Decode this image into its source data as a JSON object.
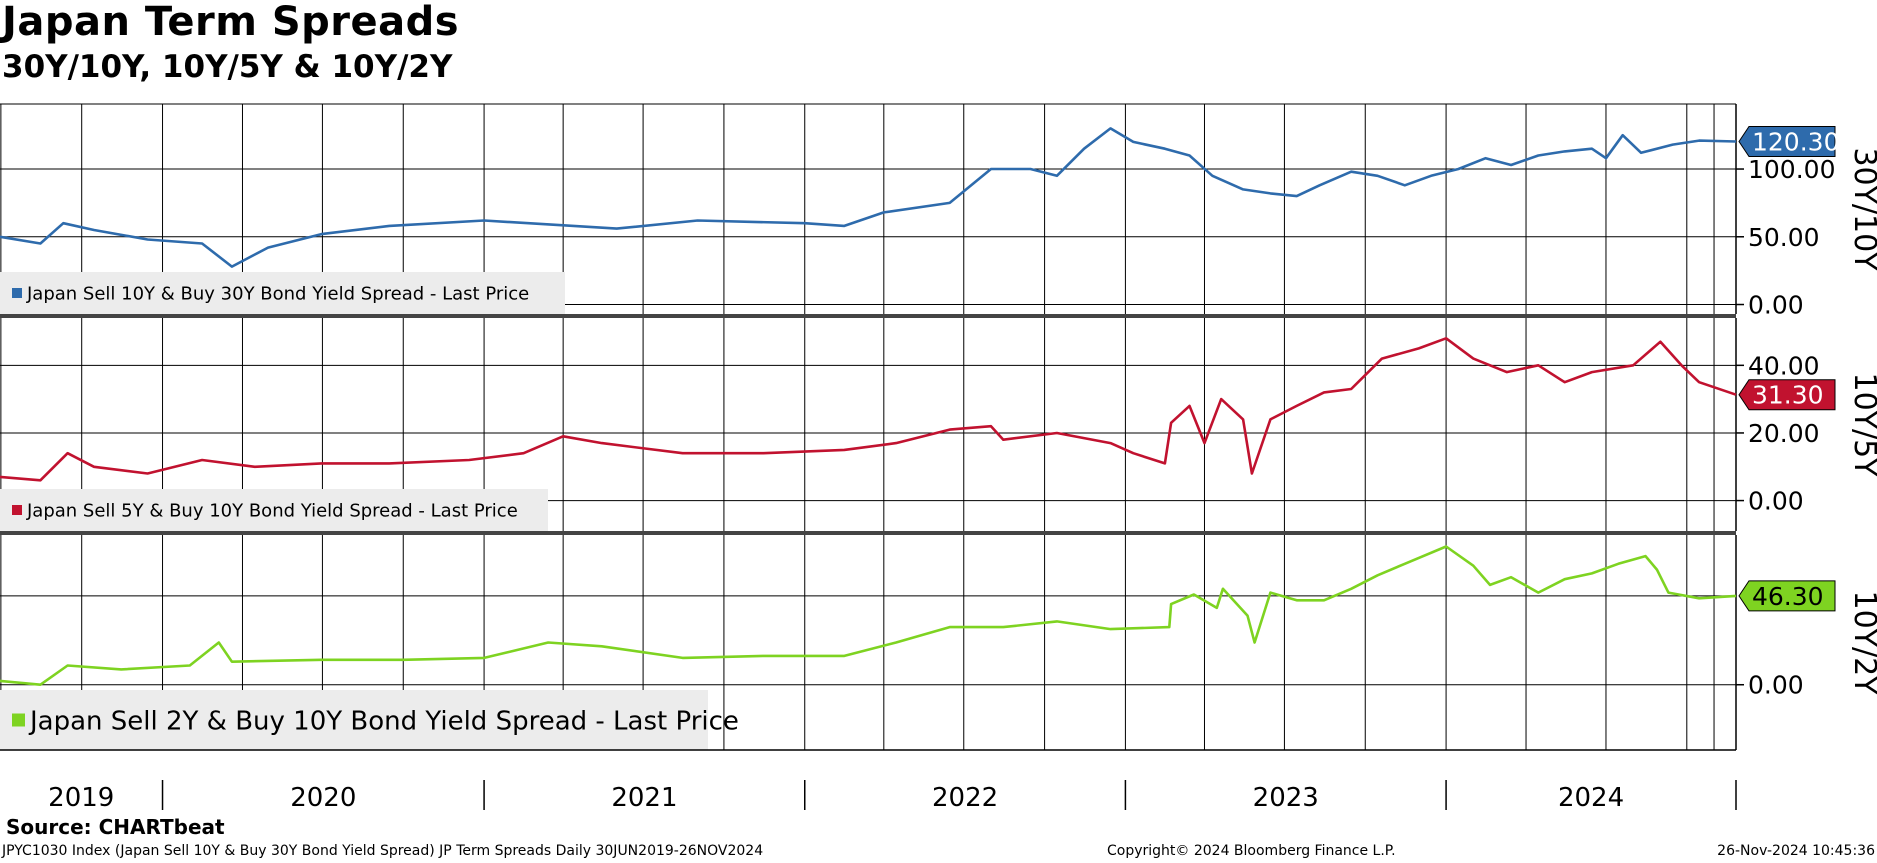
{
  "header": {
    "title": "Japan Term Spreads",
    "subtitle": "30Y/10Y, 10Y/5Y & 10Y/2Y"
  },
  "footer": {
    "source": "Source: CHARTbeat",
    "description": "JPYC1030 Index (Japan Sell 10Y & Buy 30Y Bond Yield Spread) JP Term Spreads  Daily 30JUN2019-26NOV2024",
    "copyright": "Copyright© 2024 Bloomberg Finance L.P.",
    "timestamp": "26-Nov-2024 10:45:36"
  },
  "colors": {
    "series_30y10y": "#2e6bac",
    "series_10y5y": "#c1122f",
    "series_10y2y": "#7ed321",
    "grid": "#000000",
    "legend_bg": "#ececec"
  },
  "chart_data": {
    "type": "line",
    "x_axis": {
      "start": "2019-06-30",
      "end": "2024-11-26",
      "year_labels": [
        "2019",
        "2020",
        "2021",
        "2022",
        "2023",
        "2024"
      ]
    },
    "panels": [
      {
        "axis_title": "30Y/10Y",
        "legend": "Japan Sell 10Y & Buy 30Y Bond Yield Spread - Last Price",
        "last_value_label": "120.30",
        "last_value": 120.3,
        "y_ticks": [
          "100.00",
          "50.00",
          "0.00"
        ],
        "y_range": [
          -7,
          148
        ],
        "points": [
          [
            "2019-06-30",
            50
          ],
          [
            "2019-08-15",
            45
          ],
          [
            "2019-09-10",
            60
          ],
          [
            "2019-10-15",
            55
          ],
          [
            "2019-12-15",
            48
          ],
          [
            "2020-02-15",
            45
          ],
          [
            "2020-03-20",
            28
          ],
          [
            "2020-04-30",
            42
          ],
          [
            "2020-06-30",
            52
          ],
          [
            "2020-09-15",
            58
          ],
          [
            "2021-01-01",
            62
          ],
          [
            "2021-06-01",
            56
          ],
          [
            "2021-09-01",
            62
          ],
          [
            "2022-01-01",
            60
          ],
          [
            "2022-02-15",
            58
          ],
          [
            "2022-04-01",
            68
          ],
          [
            "2022-06-15",
            75
          ],
          [
            "2022-08-01",
            100
          ],
          [
            "2022-09-15",
            100
          ],
          [
            "2022-10-15",
            95
          ],
          [
            "2022-11-15",
            115
          ],
          [
            "2022-12-15",
            130
          ],
          [
            "2023-01-10",
            120
          ],
          [
            "2023-02-15",
            115
          ],
          [
            "2023-03-15",
            110
          ],
          [
            "2023-04-10",
            95
          ],
          [
            "2023-05-15",
            85
          ],
          [
            "2023-06-15",
            82
          ],
          [
            "2023-07-15",
            80
          ],
          [
            "2023-08-10",
            88
          ],
          [
            "2023-09-15",
            98
          ],
          [
            "2023-10-15",
            95
          ],
          [
            "2023-11-15",
            88
          ],
          [
            "2023-12-15",
            95
          ],
          [
            "2024-01-15",
            100
          ],
          [
            "2024-02-15",
            108
          ],
          [
            "2024-03-15",
            103
          ],
          [
            "2024-04-15",
            110
          ],
          [
            "2024-05-15",
            113
          ],
          [
            "2024-06-15",
            115
          ],
          [
            "2024-07-01",
            108
          ],
          [
            "2024-07-20",
            125
          ],
          [
            "2024-08-10",
            112
          ],
          [
            "2024-09-15",
            118
          ],
          [
            "2024-10-15",
            121
          ],
          [
            "2024-11-26",
            120.3
          ]
        ]
      },
      {
        "axis_title": "10Y/5Y",
        "legend": "Japan Sell 5Y & Buy 10Y Bond Yield Spread - Last Price",
        "last_value_label": "31.30",
        "last_value": 31.3,
        "y_ticks": [
          "40.00",
          "20.00",
          "0.00"
        ],
        "y_range": [
          -9,
          54
        ],
        "points": [
          [
            "2019-06-30",
            7
          ],
          [
            "2019-08-15",
            6
          ],
          [
            "2019-09-15",
            14
          ],
          [
            "2019-10-15",
            10
          ],
          [
            "2019-12-15",
            8
          ],
          [
            "2020-02-15",
            12
          ],
          [
            "2020-04-15",
            10
          ],
          [
            "2020-06-30",
            11
          ],
          [
            "2020-09-15",
            11
          ],
          [
            "2020-12-15",
            12
          ],
          [
            "2021-02-15",
            14
          ],
          [
            "2021-04-01",
            19
          ],
          [
            "2021-05-15",
            17
          ],
          [
            "2021-08-15",
            14
          ],
          [
            "2021-11-15",
            14
          ],
          [
            "2022-02-15",
            15
          ],
          [
            "2022-04-15",
            17
          ],
          [
            "2022-06-15",
            21
          ],
          [
            "2022-08-01",
            22
          ],
          [
            "2022-08-15",
            18
          ],
          [
            "2022-10-15",
            20
          ],
          [
            "2022-12-15",
            17
          ],
          [
            "2023-01-10",
            14
          ],
          [
            "2023-02-15",
            11
          ],
          [
            "2023-02-22",
            23
          ],
          [
            "2023-03-15",
            28
          ],
          [
            "2023-04-01",
            17
          ],
          [
            "2023-04-20",
            30
          ],
          [
            "2023-05-15",
            24
          ],
          [
            "2023-05-25",
            8
          ],
          [
            "2023-06-15",
            24
          ],
          [
            "2023-07-15",
            28
          ],
          [
            "2023-08-15",
            32
          ],
          [
            "2023-09-15",
            33
          ],
          [
            "2023-10-20",
            42
          ],
          [
            "2023-12-01",
            45
          ],
          [
            "2024-01-01",
            48
          ],
          [
            "2024-02-01",
            42
          ],
          [
            "2024-03-10",
            38
          ],
          [
            "2024-04-15",
            40
          ],
          [
            "2024-05-15",
            35
          ],
          [
            "2024-06-15",
            38
          ],
          [
            "2024-08-01",
            40
          ],
          [
            "2024-09-01",
            47
          ],
          [
            "2024-09-25",
            40
          ],
          [
            "2024-10-15",
            35
          ],
          [
            "2024-11-26",
            31.3
          ]
        ]
      },
      {
        "axis_title": "10Y/2Y",
        "legend": "Japan Sell 2Y & Buy 10Y Bond Yield Spread - Last Price",
        "last_value_label": "46.30",
        "last_value": 46.3,
        "y_ticks": [
          "0.00"
        ],
        "y_range": [
          -34,
          78
        ],
        "points": [
          [
            "2019-06-30",
            2
          ],
          [
            "2019-08-15",
            0
          ],
          [
            "2019-09-15",
            10
          ],
          [
            "2019-11-15",
            8
          ],
          [
            "2020-02-01",
            10
          ],
          [
            "2020-03-05",
            22
          ],
          [
            "2020-03-20",
            12
          ],
          [
            "2020-06-30",
            13
          ],
          [
            "2020-10-01",
            13
          ],
          [
            "2021-01-01",
            14
          ],
          [
            "2021-03-15",
            22
          ],
          [
            "2021-05-15",
            20
          ],
          [
            "2021-08-15",
            14
          ],
          [
            "2021-11-15",
            15
          ],
          [
            "2022-02-15",
            15
          ],
          [
            "2022-04-15",
            22
          ],
          [
            "2022-06-15",
            30
          ],
          [
            "2022-08-15",
            30
          ],
          [
            "2022-10-15",
            33
          ],
          [
            "2022-12-15",
            29
          ],
          [
            "2023-02-20",
            30
          ],
          [
            "2023-02-22",
            42
          ],
          [
            "2023-03-20",
            47
          ],
          [
            "2023-04-15",
            40
          ],
          [
            "2023-04-22",
            50
          ],
          [
            "2023-05-20",
            36
          ],
          [
            "2023-05-28",
            22
          ],
          [
            "2023-06-15",
            48
          ],
          [
            "2023-07-15",
            44
          ],
          [
            "2023-08-15",
            44
          ],
          [
            "2023-09-15",
            50
          ],
          [
            "2023-10-15",
            57
          ],
          [
            "2023-11-15",
            63
          ],
          [
            "2024-01-01",
            72
          ],
          [
            "2024-02-01",
            62
          ],
          [
            "2024-02-20",
            52
          ],
          [
            "2024-03-15",
            56
          ],
          [
            "2024-04-15",
            48
          ],
          [
            "2024-05-15",
            55
          ],
          [
            "2024-06-15",
            58
          ],
          [
            "2024-07-15",
            63
          ],
          [
            "2024-08-15",
            67
          ],
          [
            "2024-08-28",
            60
          ],
          [
            "2024-09-10",
            48
          ],
          [
            "2024-10-15",
            45
          ],
          [
            "2024-11-26",
            46.3
          ]
        ]
      }
    ]
  }
}
